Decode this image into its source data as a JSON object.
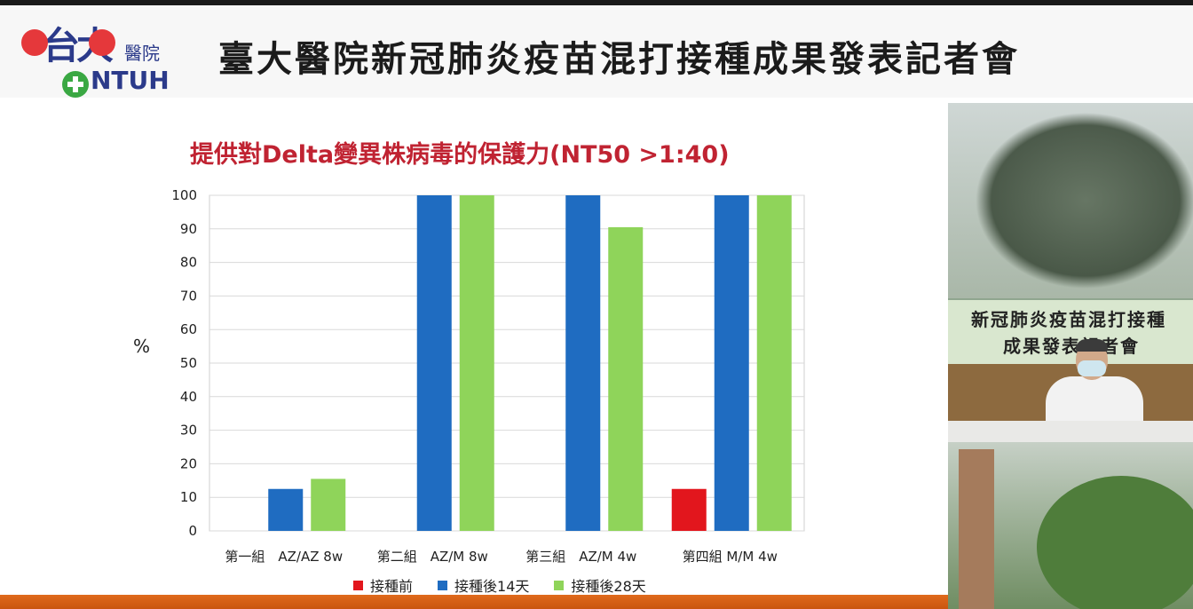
{
  "header": {
    "logo_hand": "台大",
    "logo_sub": "醫院",
    "logo_en": "NTUH",
    "title": "臺大醫院新冠肺炎疫苗混打接種成果發表記者會"
  },
  "slide": {
    "title": "提供對Delta變異株病毒的保護力(NT50 >1:40)"
  },
  "chart_data": {
    "type": "bar",
    "title": "提供對Delta變異株病毒的保護力(NT50 >1:40)",
    "xlabel": "",
    "ylabel": "%",
    "ylim": [
      0,
      100
    ],
    "yticks": [
      0,
      10,
      20,
      30,
      40,
      50,
      60,
      70,
      80,
      90,
      100
    ],
    "grid": true,
    "legend_position": "bottom",
    "categories": [
      "第一組　AZ/AZ 8w",
      "第二組　AZ/M 8w",
      "第三組　AZ/M 4w",
      "第四組 M/M 4w"
    ],
    "series": [
      {
        "name": "接種前",
        "color": "#e2161d",
        "values": [
          0,
          0,
          0,
          12.5
        ]
      },
      {
        "name": "接種後14天",
        "color": "#1f6cc1",
        "values": [
          12.5,
          100,
          100,
          100
        ]
      },
      {
        "name": "接種後28天",
        "color": "#8fd45a",
        "values": [
          15.5,
          100,
          90.5,
          100
        ]
      }
    ]
  },
  "video": {
    "banner_line1": "新冠肺炎疫苗混打接種",
    "banner_line2": "成果發表記者會"
  }
}
